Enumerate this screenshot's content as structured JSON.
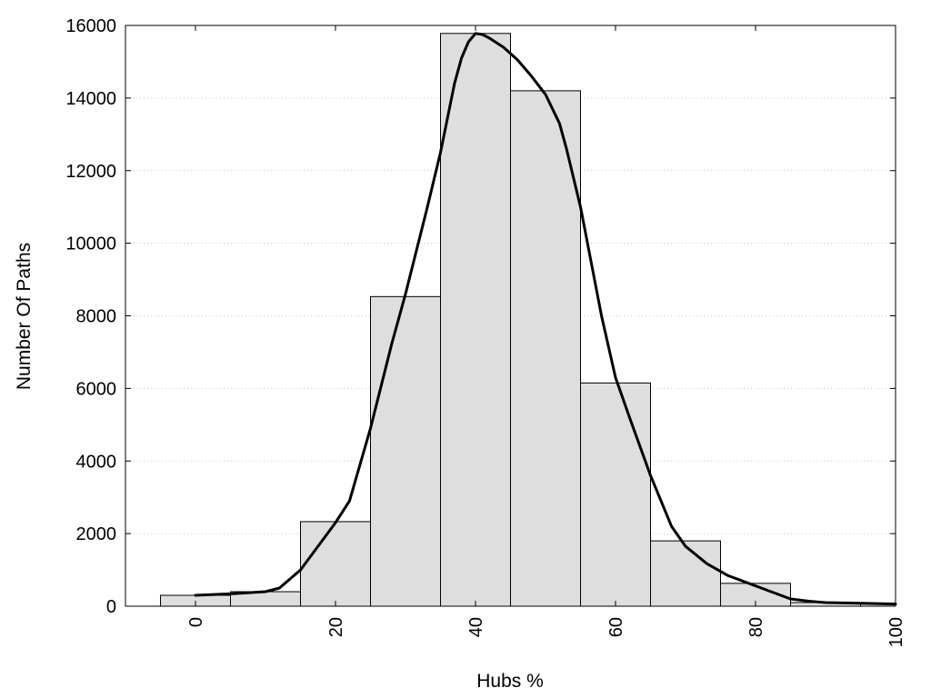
{
  "chart_data": {
    "type": "bar",
    "title": "",
    "xlabel": "Hubs %",
    "ylabel": "Number Of Paths",
    "xlim": [
      -10,
      100
    ],
    "ylim": [
      0,
      16000
    ],
    "x_ticks": [
      0,
      20,
      40,
      60,
      80,
      100
    ],
    "y_ticks": [
      0,
      2000,
      4000,
      6000,
      8000,
      10000,
      12000,
      14000,
      16000
    ],
    "grid": "horizontal dotted",
    "bins": [
      {
        "start": -5,
        "end": 5,
        "value": 300
      },
      {
        "start": 5,
        "end": 15,
        "value": 400
      },
      {
        "start": 15,
        "end": 25,
        "value": 2330
      },
      {
        "start": 25,
        "end": 35,
        "value": 8530
      },
      {
        "start": 35,
        "end": 45,
        "value": 15780
      },
      {
        "start": 45,
        "end": 55,
        "value": 14200
      },
      {
        "start": 55,
        "end": 65,
        "value": 6150
      },
      {
        "start": 65,
        "end": 75,
        "value": 1800
      },
      {
        "start": 75,
        "end": 85,
        "value": 630
      },
      {
        "start": 85,
        "end": 95,
        "value": 100
      },
      {
        "start": 95,
        "end": 100,
        "value": 80
      }
    ],
    "curve": {
      "x": [
        0,
        5,
        10,
        12,
        15,
        20,
        22,
        25,
        28,
        30,
        33,
        35,
        37,
        38,
        39,
        40,
        41,
        42,
        44,
        46,
        48,
        50,
        52,
        53,
        55,
        57,
        58,
        60,
        62,
        65,
        68,
        70,
        73,
        76,
        80,
        85,
        88,
        90,
        95,
        100
      ],
      "y": [
        300,
        340,
        400,
        500,
        1000,
        2300,
        2900,
        4900,
        7200,
        8600,
        10900,
        12500,
        14400,
        15100,
        15550,
        15780,
        15750,
        15650,
        15400,
        15050,
        14600,
        14100,
        13300,
        12600,
        11000,
        9000,
        8000,
        6300,
        5200,
        3600,
        2200,
        1650,
        1180,
        850,
        560,
        200,
        130,
        100,
        80,
        60
      ]
    },
    "colors": {
      "bar_fill": "#dedede",
      "bar_stroke": "#000000",
      "curve": "#000000",
      "grid": "#c8c8c8"
    }
  }
}
